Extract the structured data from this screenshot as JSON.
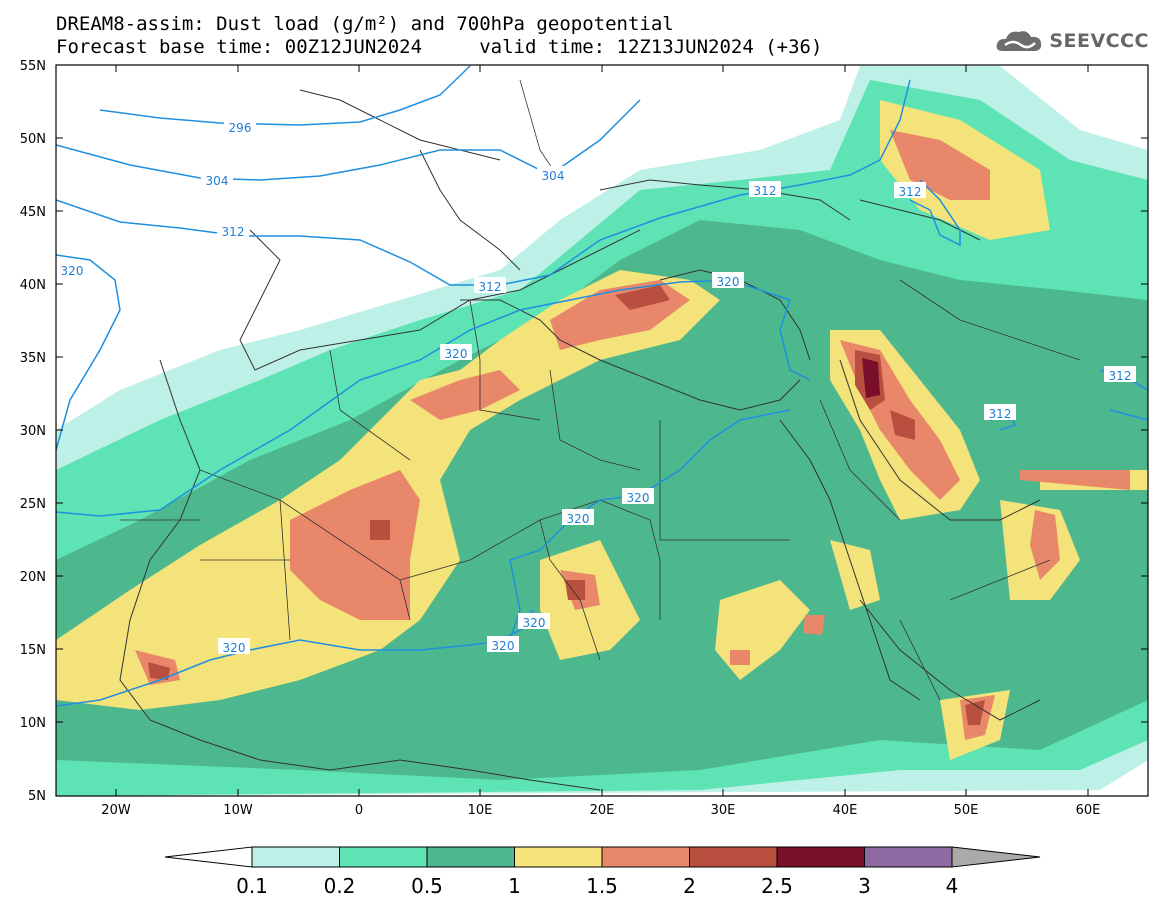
{
  "header": {
    "title_line1": "DREAM8-assim: Dust load (g/m²) and 700hPa geopotential",
    "title_line2": "Forecast base time: 00Z12JUN2024     valid time: 12Z13JUN2024 (+36)",
    "logo_text": "SEEVCCC"
  },
  "axes": {
    "lat_labels": [
      "55N",
      "50N",
      "45N",
      "40N",
      "35N",
      "30N",
      "25N",
      "20N",
      "15N",
      "10N",
      "5N"
    ],
    "lon_labels": [
      "20W",
      "10W",
      "0",
      "10E",
      "20E",
      "30E",
      "40E",
      "50E",
      "60E"
    ]
  },
  "contours": {
    "labels": [
      "296",
      "304",
      "304",
      "312",
      "312",
      "312",
      "312",
      "312",
      "320",
      "320",
      "320",
      "320",
      "320",
      "320",
      "320",
      "320"
    ]
  },
  "colorbar": {
    "tick_labels": [
      "0.1",
      "0.2",
      "0.5",
      "1",
      "1.5",
      "2",
      "2.5",
      "3",
      "4"
    ],
    "colors": [
      "#bdf0e6",
      "#5ee3b5",
      "#4db88e",
      "#f4e27a",
      "#e8876a",
      "#b9503f",
      "#7a0f2a",
      "#8e6aa2"
    ],
    "low_end": "#ffffff",
    "high_end": "#aaaaaa"
  },
  "palette": {
    "contour_line": "#1f8fe0",
    "land_bg": "#ffffff",
    "border": "#333333"
  }
}
